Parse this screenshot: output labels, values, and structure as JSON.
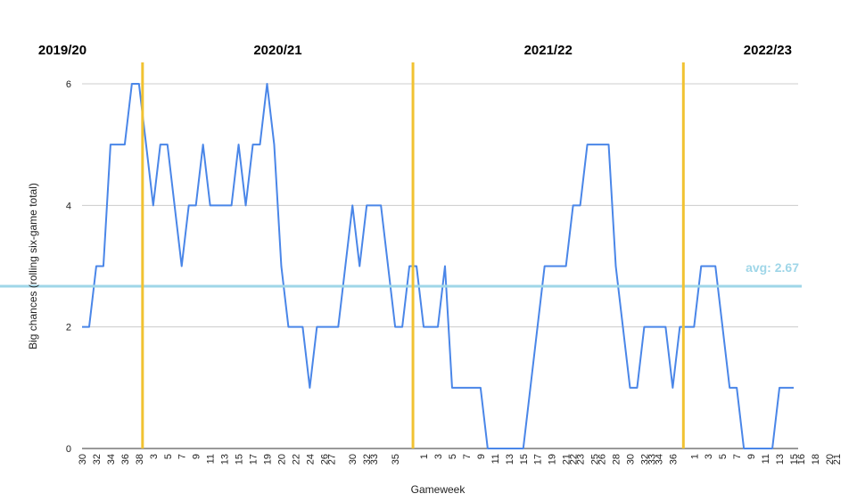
{
  "chart_data": {
    "type": "line",
    "xlabel": "Gameweek",
    "ylabel": "Big chances (rolling six-game total)",
    "ylim": [
      0,
      6
    ],
    "yticks": [
      0,
      2,
      4,
      6
    ],
    "grid": true,
    "colors": {
      "line": "#4a86e8",
      "divider": "#f1c232",
      "average": "#9fd6e8",
      "grid": "#cccccc"
    },
    "seasons": [
      {
        "label": "2019/20",
        "start_index": 0
      },
      {
        "label": "2020/21",
        "start_index": 9
      },
      {
        "label": "2021/22",
        "start_index": 47
      },
      {
        "label": "2022/23",
        "start_index": 85
      }
    ],
    "average": {
      "value": 2.67,
      "label": "avg: 2.67"
    },
    "tick_labels": [
      "30",
      "32",
      "34",
      "36",
      "38",
      "3",
      "5",
      "7",
      "9",
      "11",
      "13",
      "15",
      "17",
      "19",
      "20",
      "22",
      "24",
      "26",
      "27",
      "30",
      "32",
      "33",
      "35",
      "1",
      "3",
      "5",
      "7",
      "9",
      "11",
      "13",
      "15",
      "17",
      "19",
      "21",
      "22",
      "23",
      "25",
      "26",
      "28",
      "30",
      "32",
      "33",
      "34",
      "36",
      "1",
      "3",
      "5",
      "7",
      "9",
      "11",
      "13",
      "15",
      "16",
      "18",
      "20",
      "21"
    ],
    "tick_indices": [
      0,
      2,
      4,
      6,
      8,
      10,
      12,
      14,
      16,
      18,
      20,
      22,
      24,
      26,
      28,
      30,
      32,
      34,
      35,
      38,
      40,
      41,
      44,
      48,
      50,
      52,
      54,
      56,
      58,
      60,
      62,
      64,
      66,
      68,
      69,
      70,
      72,
      73,
      75,
      77,
      79,
      80,
      81,
      83,
      86,
      88,
      90,
      92,
      94,
      96,
      98,
      100,
      101,
      103,
      105,
      106
    ],
    "series": [
      {
        "values": [
          2,
          2,
          3,
          3,
          5,
          5,
          5,
          6,
          6,
          5,
          4,
          5,
          5,
          4,
          3,
          4,
          4,
          5,
          4,
          4,
          4,
          4,
          5,
          4,
          5,
          5,
          6,
          5,
          3,
          2,
          2,
          2,
          1,
          2,
          2,
          2,
          2,
          3,
          4,
          3,
          4,
          4,
          4,
          3,
          2,
          2,
          3,
          3,
          2,
          2,
          2,
          3,
          1,
          1,
          1,
          1,
          1,
          0,
          0,
          0,
          0,
          0,
          0,
          1,
          2,
          3,
          3,
          3,
          3,
          4,
          4,
          5,
          5,
          5,
          5,
          3,
          2,
          1,
          1,
          2,
          2,
          2,
          2,
          1,
          2,
          2,
          2,
          3,
          3,
          3,
          2,
          1,
          1,
          0,
          0,
          0,
          0,
          0,
          1,
          1,
          1
        ]
      }
    ]
  }
}
